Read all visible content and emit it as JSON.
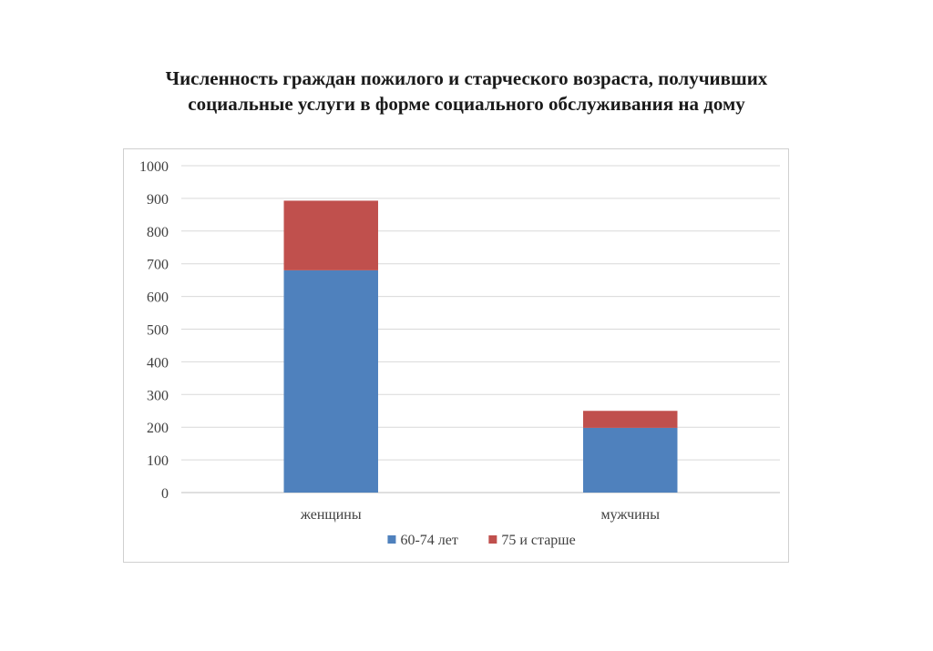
{
  "title_line1": "Численность граждан пожилого и старческого возраста,  получивших",
  "title_line2": "социальные услуги в форме  социального обслуживания  на дому",
  "chart_data": {
    "type": "bar",
    "stacked": true,
    "categories": [
      "женщины",
      "мужчины"
    ],
    "series": [
      {
        "name": "60-74 лет",
        "values": [
          680,
          198
        ],
        "color": "#4f81bd"
      },
      {
        "name": "75  и старше",
        "values": [
          213,
          52
        ],
        "color": "#c0504d"
      }
    ],
    "ylim": [
      0,
      1000
    ],
    "yticks": [
      0,
      100,
      200,
      300,
      400,
      500,
      600,
      700,
      800,
      900,
      1000
    ],
    "grid": true,
    "legend": "bottom"
  }
}
